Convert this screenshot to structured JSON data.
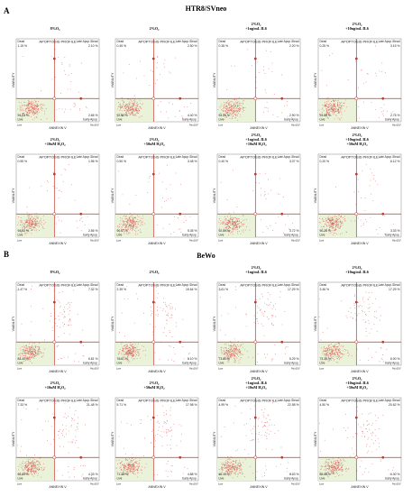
{
  "figure": {
    "part_a": {
      "letter": "A",
      "title": "HTR8/SVneo"
    },
    "part_b": {
      "letter": "B",
      "title": "BeWo"
    }
  },
  "panel_labels": {
    "profile_title": "APOPTOSIS PROFILE",
    "q_dead": "Dead",
    "q_late": "Late Apop./Dead",
    "q_live": "Live",
    "q_early": "Early Apop.",
    "x_axis": "ANNEXIN V",
    "y_axis": "VIABILITY",
    "tick_low": "Low",
    "tick_high": "%(x10)⁴"
  },
  "colors": {
    "quadrant_line": "#c0392b",
    "live_fill": "#eaf3d9",
    "dots": "#d9534f",
    "border": "#888888"
  },
  "panels": [
    {
      "section": "A",
      "condition": [
        "8%O₂"
      ],
      "dead": "1.15 %",
      "late": "2.10 %",
      "live": "94.03 %",
      "early": "2.66 %"
    },
    {
      "section": "A",
      "condition": [
        "2%O₂"
      ],
      "dead": "0.45 %",
      "late": "2.50 %",
      "live": "92.60 %",
      "early": "4.40 %"
    },
    {
      "section": "A",
      "condition": [
        "2%O₂",
        "+1ng/mL IL6"
      ],
      "dead": "0.35 %",
      "late": "2.20 %",
      "live": "94.55 %",
      "early": "2.90 %"
    },
    {
      "section": "A",
      "condition": [
        "2%O₂",
        "+10ng/mL IL6"
      ],
      "dead": "0.25 %",
      "late": "3.15 %",
      "live": "93.85 %",
      "early": "2.75 %"
    },
    {
      "section": "A",
      "condition": [
        "2%O₂",
        "+10uM H₂O₂"
      ],
      "dead": "0.55 %",
      "late": "1.96 %",
      "live": "94.93 %",
      "early": "2.56 %"
    },
    {
      "section": "A",
      "condition": [
        "2%O₂",
        "+50uM H₂O₂"
      ],
      "dead": "0.50 %",
      "late": "3.48 %",
      "live": "90.67 %",
      "early": "5.35 %"
    },
    {
      "section": "A",
      "condition": [
        "2%O₂",
        "+1ng/mL IL6",
        "+10uM H₂O₂"
      ],
      "dead": "0.40 %",
      "late": "3.07 %",
      "live": "92.80 %",
      "early": "3.72 %"
    },
    {
      "section": "A",
      "condition": [
        "2%O₂",
        "+10ng/mL IL6",
        "+50uM H₂O₂"
      ],
      "dead": "0.20 %",
      "late": "6.12 %",
      "live": "90.26 %",
      "early": "3.33 %"
    },
    {
      "section": "B",
      "condition": [
        "8%O₂"
      ],
      "dead": "1.47 %",
      "late": "7.32 %",
      "live": "84.40 %",
      "early": "6.81 %"
    },
    {
      "section": "B",
      "condition": [
        "2%O₂"
      ],
      "dead": "2.39 %",
      "late": "15.64 %",
      "live": "76.87 %",
      "early": "5.10 %"
    },
    {
      "section": "B",
      "condition": [
        "2%O₂",
        "+1ng/mL IL6"
      ],
      "dead": "3.61 %",
      "late": "17.29 %",
      "live": "73.80 %",
      "early": "5.29 %"
    },
    {
      "section": "B",
      "condition": [
        "2%O₂",
        "+10ng/mL IL6"
      ],
      "dead": "3.46 %",
      "late": "17.29 %",
      "live": "73.35 %",
      "early": "6.00 %"
    },
    {
      "section": "B",
      "condition": [
        "2%O₂",
        "+10uM H₂O₂"
      ],
      "dead": "7.33 %",
      "late": "21.48 %",
      "live": "66.85 %",
      "early": "4.33 %"
    },
    {
      "section": "B",
      "condition": [
        "2%O₂",
        "+50uM H₂O₂"
      ],
      "dead": "5.71 %",
      "late": "17.98 %",
      "live": "71.38 %",
      "early": "4.88 %"
    },
    {
      "section": "B",
      "condition": [
        "2%O₂",
        "+1ng/mL IL6",
        "+10uM H₂O₂"
      ],
      "dead": "4.99 %",
      "late": "22.98 %",
      "live": "66.15 %",
      "early": "6.03 %"
    },
    {
      "section": "B",
      "condition": [
        "2%O₂",
        "+10ng/mL IL6",
        "+50uM H₂O₂"
      ],
      "dead": "4.50 %",
      "late": "20.62 %",
      "live": "68.68 %",
      "early": "6.30 %"
    }
  ]
}
